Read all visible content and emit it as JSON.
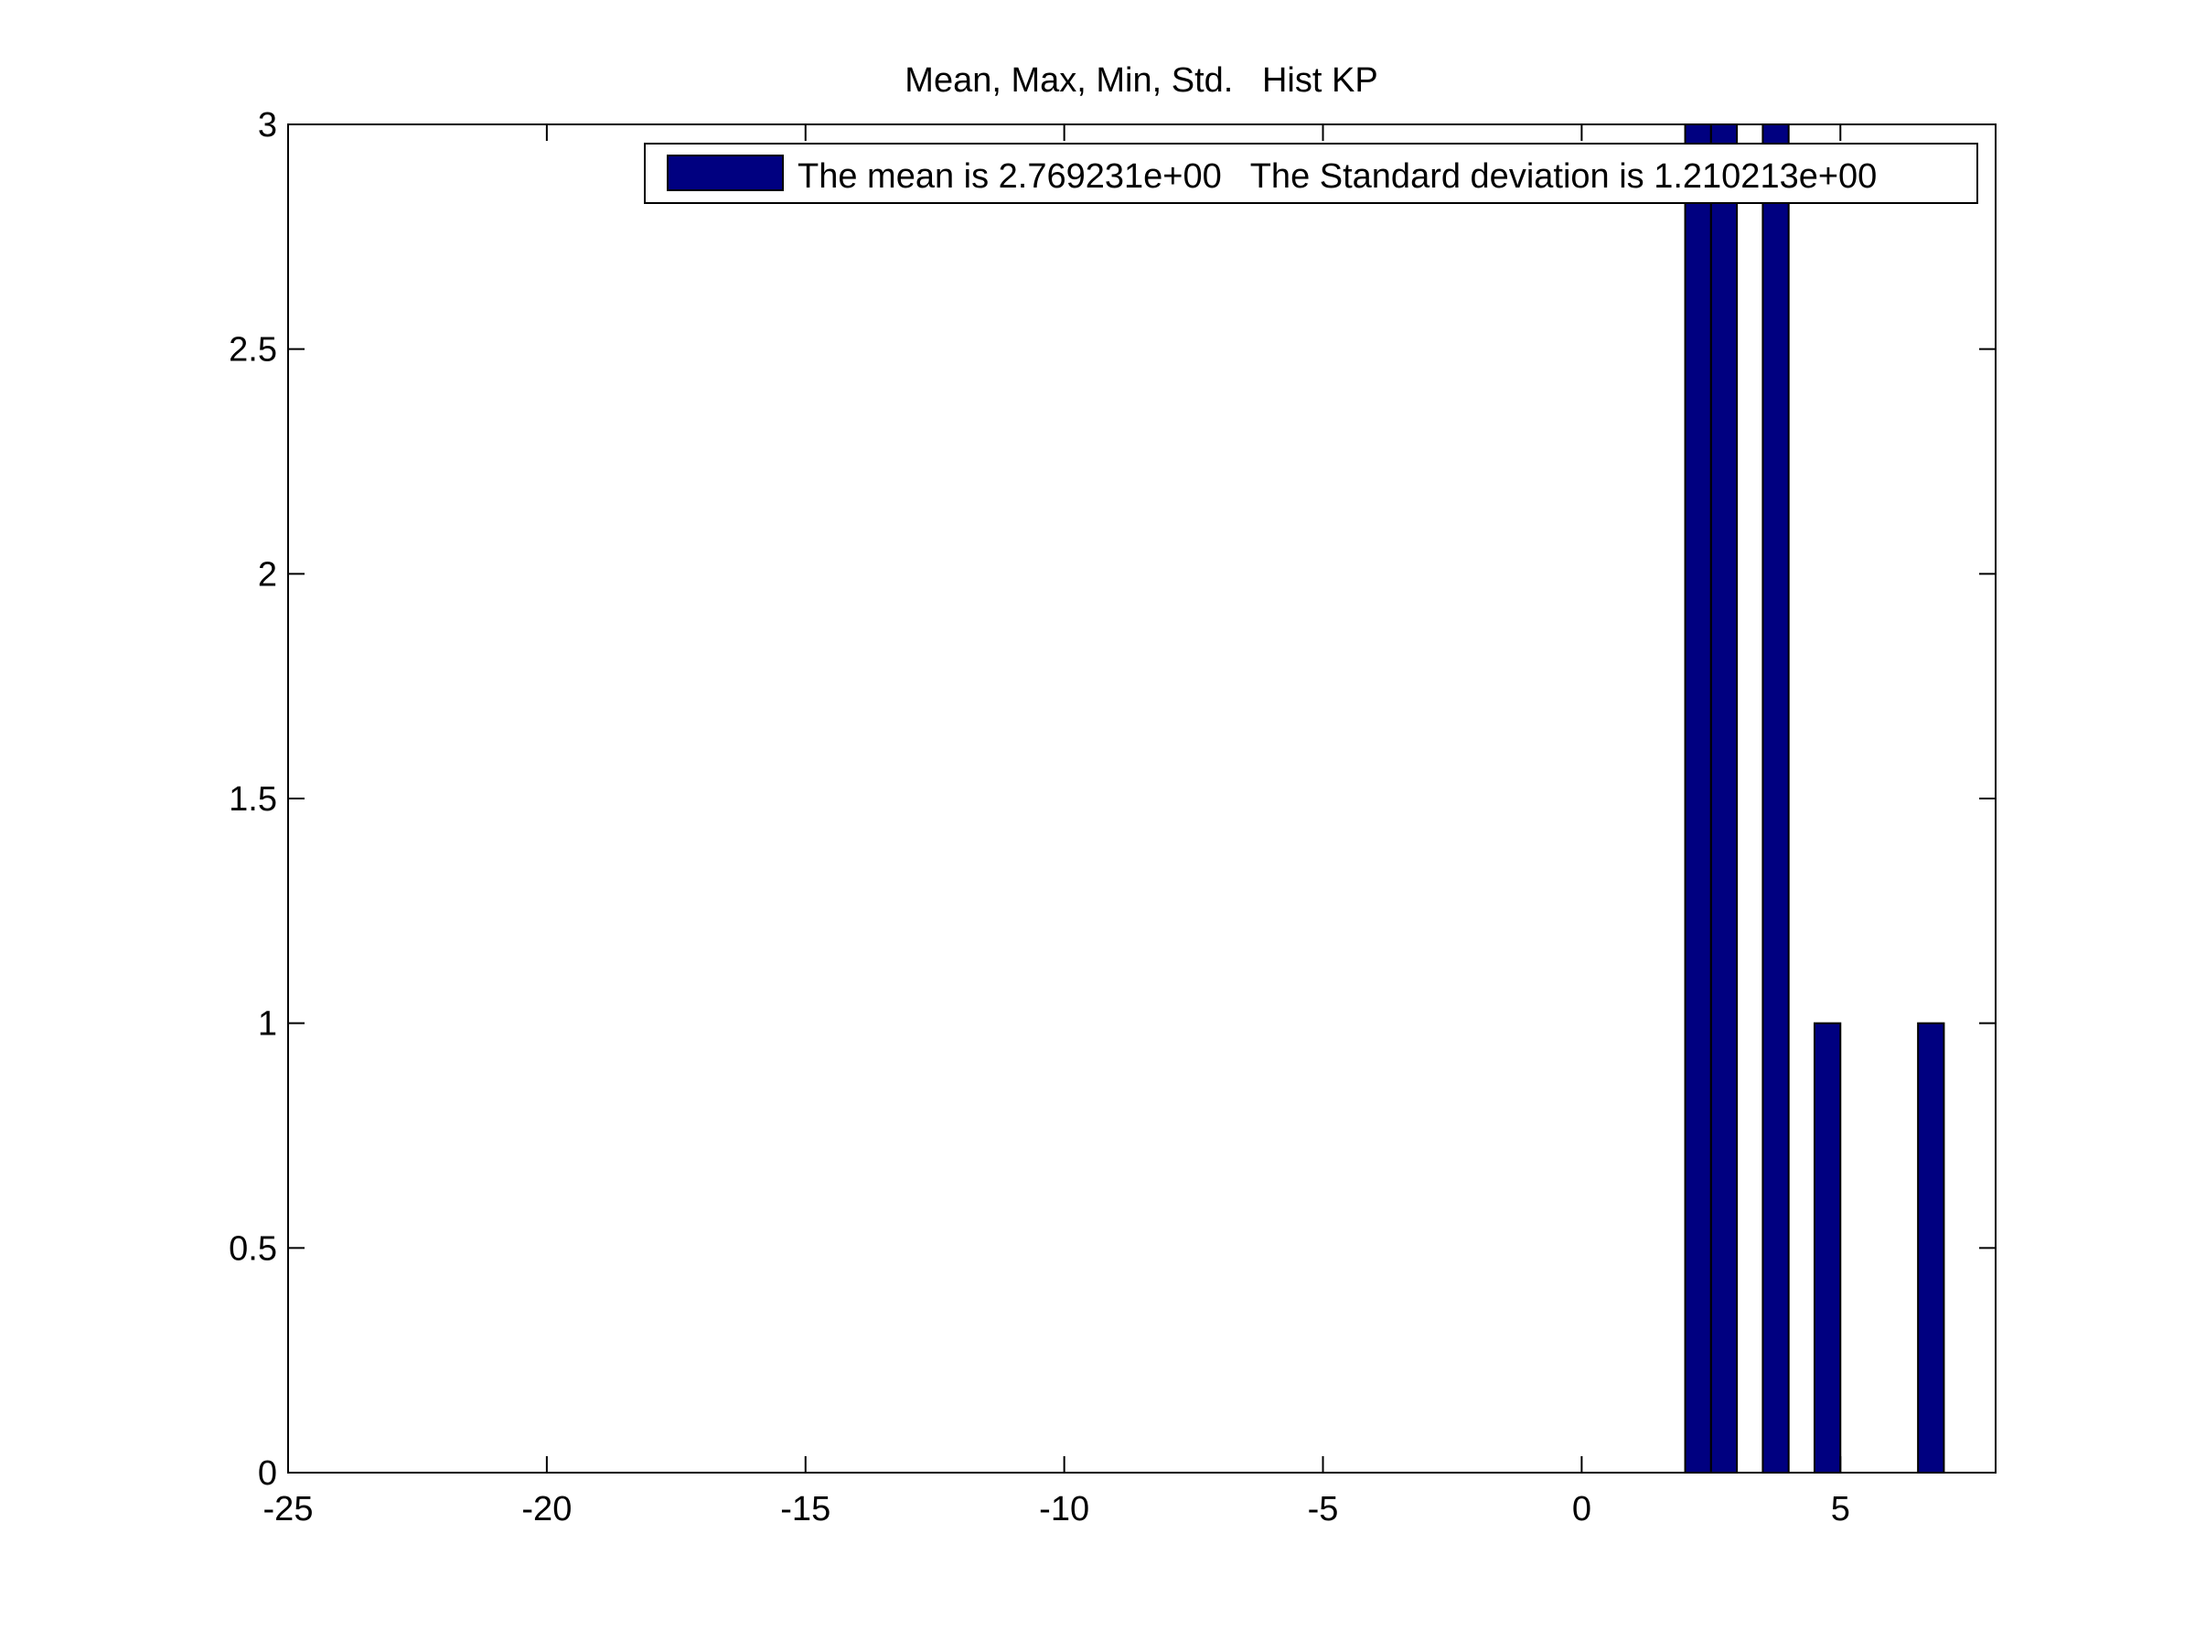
{
  "chart_data": {
    "type": "bar",
    "title": "Mean, Max, Min, Std.   Hist KP",
    "xlabel": "",
    "ylabel": "",
    "xlim": [
      -25,
      8
    ],
    "ylim": [
      0,
      3
    ],
    "xticks": [
      -25,
      -20,
      -15,
      -10,
      -5,
      0,
      5
    ],
    "yticks": [
      0,
      0.5,
      1,
      1.5,
      2,
      2.5,
      3
    ],
    "xtick_labels": [
      "-25",
      "-20",
      "-15",
      "-10",
      "-5",
      "0",
      "5"
    ],
    "ytick_labels": [
      "0",
      "0.5",
      "1",
      "1.5",
      "2",
      "2.5",
      "3"
    ],
    "grid": false,
    "legend_position": "top-right",
    "bar_color": "#000080",
    "series": [
      {
        "name": "The mean is 2.769231e+00   The Standard deviation is 1.210213e+00",
        "x": [
          2.25,
          2.75,
          3.75,
          4.75,
          6.75
        ],
        "values": [
          3,
          3,
          3,
          1,
          1
        ]
      }
    ],
    "bar_width": 0.5
  }
}
